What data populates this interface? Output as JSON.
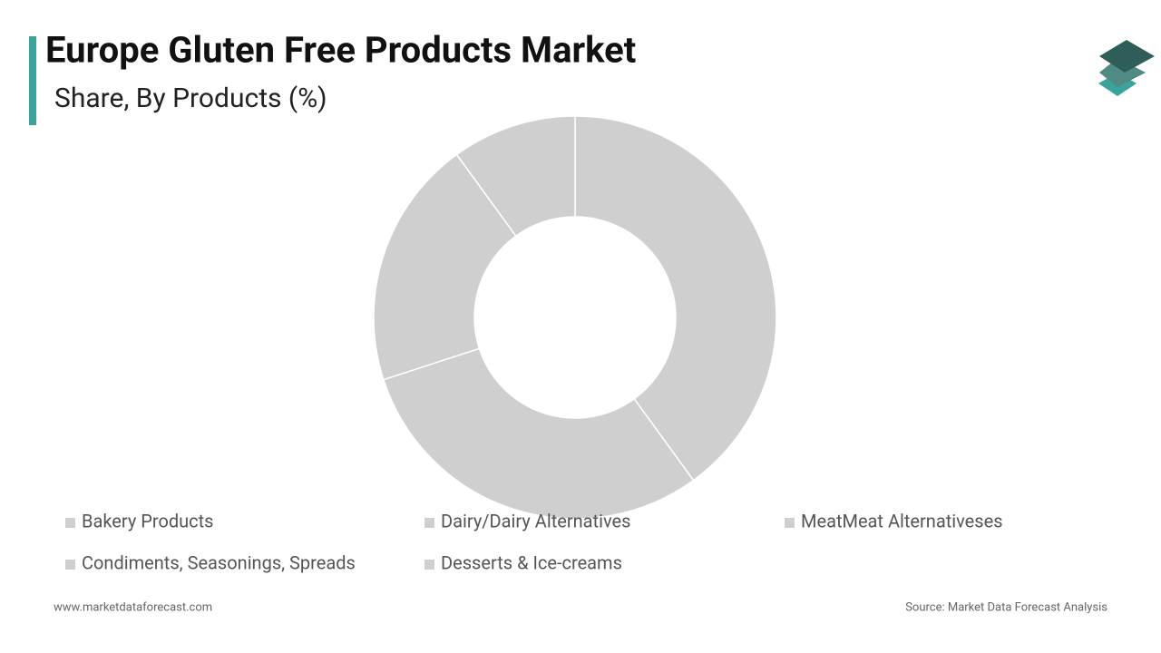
{
  "chart_data": {
    "type": "donut",
    "title": "Europe Gluten Free Products Market",
    "subtitle": "Share, By Products (%)",
    "categories": [
      "Bakery Products",
      "Dairy/Dairy Alternatives",
      "MeatMeat Alternativeses",
      "Condiments, Seasonings, Spreads",
      "Desserts & Ice-creams"
    ],
    "values": [
      40,
      30,
      20,
      10,
      0
    ],
    "colors": [
      "#d0cfcf",
      "#d0cfcf",
      "#d0cfcf",
      "#d0cfcf",
      "#d0cfcf"
    ]
  },
  "footer": {
    "website": "www.marketdataforecast.com",
    "source": "Source: Market Data Forecast Analysis"
  }
}
